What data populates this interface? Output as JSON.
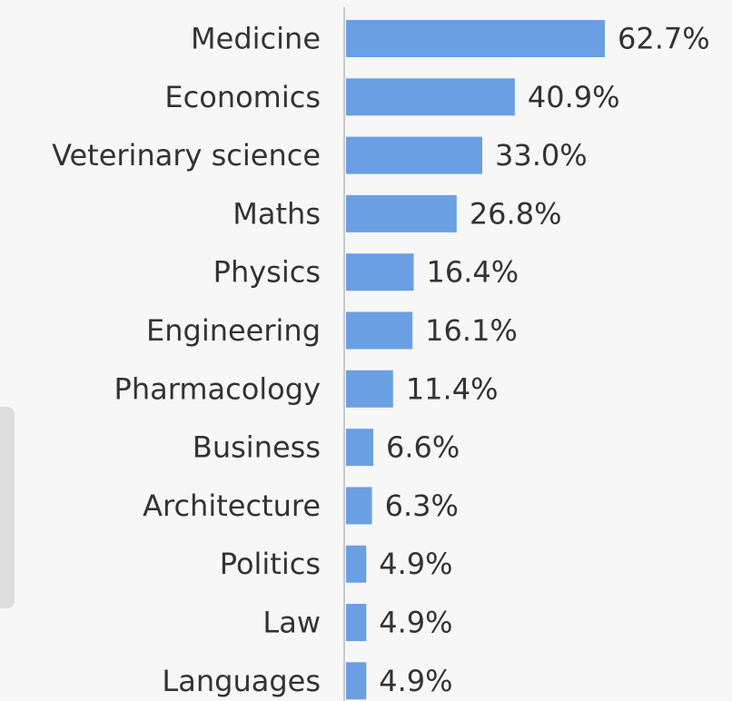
{
  "chart_data": {
    "type": "bar",
    "orientation": "horizontal",
    "categories": [
      "Medicine",
      "Economics",
      "Veterinary science",
      "Maths",
      "Physics",
      "Engineering",
      "Pharmacology",
      "Business",
      "Architecture",
      "Politics",
      "Law",
      "Languages"
    ],
    "values": [
      62.7,
      40.9,
      33.0,
      26.8,
      16.4,
      16.1,
      11.4,
      6.6,
      6.3,
      4.9,
      4.9,
      4.9
    ],
    "value_labels": [
      "62.7%",
      "40.9%",
      "33.0%",
      "26.8%",
      "16.4%",
      "16.1%",
      "11.4%",
      "6.6%",
      "6.3%",
      "4.9%",
      "4.9%",
      "4.9%"
    ],
    "unit": "%",
    "xlim": [
      0,
      62.7
    ],
    "grid": false,
    "legend": "none",
    "bar_color": "#6a9fe3",
    "title": "",
    "xlabel": "",
    "ylabel": ""
  }
}
